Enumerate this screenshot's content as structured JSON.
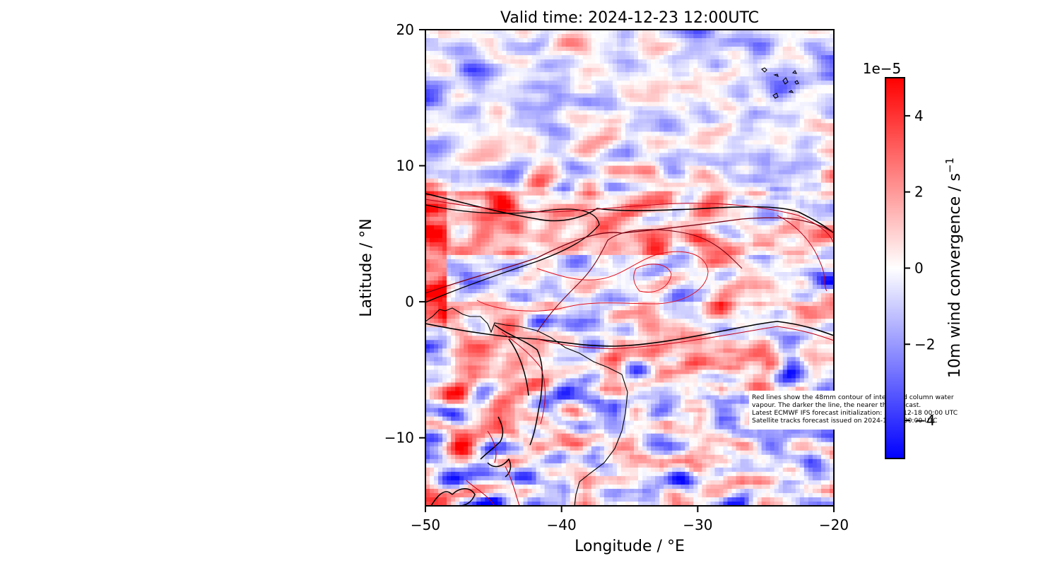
{
  "chart_data": {
    "type": "heatmap",
    "title": "Valid time: 2024-12-23 12:00UTC",
    "xlabel": "Longitude / °E",
    "ylabel": "Latitude / °N",
    "xlim": [
      -50,
      -20
    ],
    "ylim": [
      -15,
      20
    ],
    "x_ticks": [
      -50,
      -40,
      -30,
      -20
    ],
    "y_ticks": [
      -10,
      0,
      10,
      20
    ],
    "x_tick_labels": [
      "−50",
      "−40",
      "−30",
      "−20"
    ],
    "y_tick_labels": [
      "−10",
      "0",
      "10",
      "20"
    ],
    "colorbar": {
      "label": "10m wind convergence / s",
      "label_superscript": "−1",
      "offset_text": "1e−5",
      "colormap": "bwr",
      "colors": [
        "#0000ff",
        "#ffffff",
        "#ff0000"
      ],
      "range": [
        -5,
        5
      ],
      "ticks": [
        -4,
        -2,
        0,
        2,
        4
      ],
      "tick_labels": [
        "−4",
        "−2",
        "0",
        "2",
        "4"
      ]
    },
    "field_bands": [
      {
        "lat_range": [
          10,
          20
        ],
        "character": "weak mixed, mostly blue"
      },
      {
        "lat_range": [
          4,
          8
        ],
        "character": "strong convergence (red) along ITCZ"
      },
      {
        "lat_range": [
          -4,
          0
        ],
        "character": "convergence band south of equator"
      },
      {
        "lat_range": [
          -15,
          -3
        ],
        "character": "mixed red/blue with strong cells near coast"
      }
    ],
    "contours": {
      "variable": "integrated column water vapour",
      "level_mm": 48,
      "colors": [
        "#000000",
        "#7a0010",
        "#c00018",
        "#e0101c"
      ]
    },
    "annotation": [
      "Red lines show the 48mm contour of integrated column water",
      "vapour. The darker the line, the nearer the forecast.",
      "Latest ECMWF IFS forecast initialization: 2024-12-18 00:00 UTC",
      "Satellite tracks forecast issued on 2024-12-18 00:00 UTC"
    ]
  }
}
